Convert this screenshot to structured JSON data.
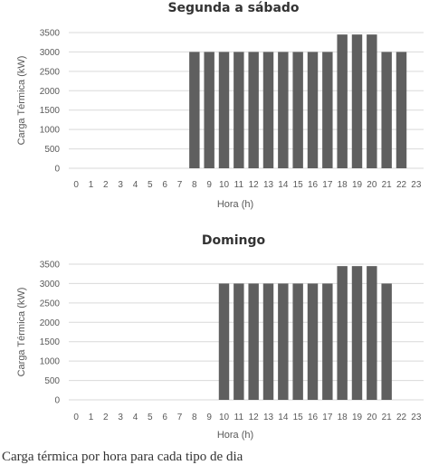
{
  "chart_data": [
    {
      "type": "bar",
      "title": "Segunda a sábado",
      "xlabel": "Hora (h)",
      "ylabel": "Carga Térmica (kW)",
      "ylim": [
        0,
        3500
      ],
      "yticks": [
        0,
        500,
        1000,
        1500,
        2000,
        2500,
        3000,
        3500
      ],
      "grid": true,
      "categories": [
        "0",
        "1",
        "2",
        "3",
        "4",
        "5",
        "6",
        "7",
        "8",
        "9",
        "10",
        "11",
        "12",
        "13",
        "14",
        "15",
        "16",
        "17",
        "18",
        "19",
        "20",
        "21",
        "22",
        "23"
      ],
      "values": [
        0,
        0,
        0,
        0,
        0,
        0,
        0,
        0,
        3000,
        3000,
        3000,
        3000,
        3000,
        3000,
        3000,
        3000,
        3000,
        3000,
        3450,
        3450,
        3450,
        3000,
        3000,
        0
      ],
      "bar_color": "#5f5f5f"
    },
    {
      "type": "bar",
      "title": "Domingo",
      "xlabel": "Hora (h)",
      "ylabel": "Carga Térmica (kW)",
      "ylim": [
        0,
        3500
      ],
      "yticks": [
        0,
        500,
        1000,
        1500,
        2000,
        2500,
        3000,
        3500
      ],
      "grid": true,
      "categories": [
        "0",
        "1",
        "2",
        "3",
        "4",
        "5",
        "6",
        "7",
        "8",
        "9",
        "10",
        "11",
        "12",
        "13",
        "14",
        "15",
        "16",
        "17",
        "18",
        "19",
        "20",
        "21",
        "22",
        "23"
      ],
      "values": [
        0,
        0,
        0,
        0,
        0,
        0,
        0,
        0,
        0,
        0,
        3000,
        3000,
        3000,
        3000,
        3000,
        3000,
        3000,
        3000,
        3450,
        3450,
        3450,
        3000,
        0,
        0
      ],
      "bar_color": "#5f5f5f"
    }
  ],
  "caption": "Carga térmica por hora para cada tipo de dia"
}
